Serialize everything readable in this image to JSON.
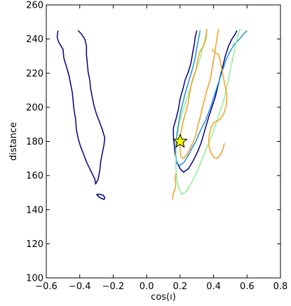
{
  "chart_data": {
    "type": "line",
    "title": "",
    "xlabel": "cos(ı)",
    "ylabel": "distance",
    "xlim": [
      -0.6,
      0.8
    ],
    "ylim": [
      100,
      260
    ],
    "xticks": [
      -0.6,
      -0.4,
      -0.2,
      0.0,
      0.2,
      0.4,
      0.6,
      0.8
    ],
    "yticks": [
      100,
      120,
      140,
      160,
      180,
      200,
      220,
      240,
      260
    ],
    "xtick_labels": [
      "−0.6",
      "−0.4",
      "−0.2",
      "0.0",
      "0.2",
      "0.4",
      "0.6",
      "0.8"
    ],
    "ytick_labels": [
      "100",
      "120",
      "140",
      "160",
      "180",
      "200",
      "220",
      "240",
      "260"
    ],
    "grid": false,
    "legend": "none",
    "series": [
      {
        "color": "#000080",
        "segments": [
          [
            [
              -0.53,
              245
            ],
            [
              -0.535,
              241
            ],
            [
              -0.525,
              238
            ],
            [
              -0.5,
              234
            ],
            [
              -0.495,
              229
            ],
            [
              -0.48,
              224
            ],
            [
              -0.465,
              219
            ],
            [
              -0.455,
              214
            ],
            [
              -0.445,
              209
            ],
            [
              -0.44,
              204
            ],
            [
              -0.435,
              199
            ],
            [
              -0.425,
              193
            ],
            [
              -0.42,
              187
            ],
            [
              -0.41,
              182
            ],
            [
              -0.395,
              177
            ],
            [
              -0.375,
              172
            ],
            [
              -0.36,
              168
            ],
            [
              -0.34,
              164
            ],
            [
              -0.325,
              161
            ],
            [
              -0.31,
              158
            ],
            [
              -0.305,
              155
            ],
            [
              -0.29,
              158
            ],
            [
              -0.28,
              163
            ],
            [
              -0.275,
              168
            ],
            [
              -0.265,
              173
            ],
            [
              -0.255,
              178
            ],
            [
              -0.25,
              182
            ],
            [
              -0.265,
              187
            ],
            [
              -0.28,
              191
            ],
            [
              -0.3,
              196
            ],
            [
              -0.315,
              201
            ],
            [
              -0.325,
              206
            ],
            [
              -0.335,
              211
            ],
            [
              -0.34,
              216
            ],
            [
              -0.35,
              221
            ],
            [
              -0.355,
              226
            ],
            [
              -0.36,
              231
            ],
            [
              -0.36,
              236
            ],
            [
              -0.37,
              240
            ],
            [
              -0.39,
              243
            ],
            [
              -0.41,
              245
            ]
          ],
          [
            [
              -0.3,
              149
            ],
            [
              -0.29,
              148
            ],
            [
              -0.28,
              147
            ],
            [
              -0.255,
              146
            ],
            [
              -0.25,
              147
            ],
            [
              -0.26,
              148.5
            ],
            [
              -0.28,
              149
            ],
            [
              -0.3,
              149
            ]
          ],
          [
            [
              0.3,
              245
            ],
            [
              0.29,
              241
            ],
            [
              0.285,
              237
            ],
            [
              0.275,
              232
            ],
            [
              0.265,
              226
            ],
            [
              0.25,
              221
            ],
            [
              0.23,
              216
            ],
            [
              0.215,
              210
            ],
            [
              0.2,
              205
            ],
            [
              0.19,
              199
            ],
            [
              0.175,
              193
            ],
            [
              0.16,
              188
            ],
            [
              0.16,
              183
            ],
            [
              0.165,
              178
            ],
            [
              0.17,
              173
            ],
            [
              0.18,
              168
            ],
            [
              0.2,
              164
            ],
            [
              0.22,
              162
            ],
            [
              0.25,
              164
            ],
            [
              0.28,
              169
            ],
            [
              0.305,
              174
            ],
            [
              0.325,
              179
            ],
            [
              0.34,
              184
            ],
            [
              0.355,
              189
            ],
            [
              0.37,
              194
            ],
            [
              0.39,
              200
            ],
            [
              0.41,
              206
            ],
            [
              0.425,
              212
            ],
            [
              0.44,
              218
            ],
            [
              0.455,
              224
            ],
            [
              0.47,
              230
            ],
            [
              0.49,
              236
            ],
            [
              0.51,
              240
            ],
            [
              0.53,
              243
            ],
            [
              0.54,
              245
            ]
          ]
        ]
      },
      {
        "color": "#1f8ee0",
        "segments": [
          [
            [
              0.32,
              245
            ],
            [
              0.31,
              240
            ],
            [
              0.3,
              235
            ],
            [
              0.29,
              229
            ],
            [
              0.275,
              223
            ],
            [
              0.26,
              218
            ],
            [
              0.245,
              213
            ],
            [
              0.23,
              208
            ],
            [
              0.215,
              202
            ],
            [
              0.2,
              196
            ],
            [
              0.19,
              190
            ],
            [
              0.18,
              184
            ],
            [
              0.175,
              178
            ],
            [
              0.175,
              172
            ],
            [
              0.18,
              167
            ],
            [
              0.2,
              166
            ],
            [
              0.225,
              168
            ],
            [
              0.25,
              172
            ],
            [
              0.27,
              176
            ],
            [
              0.295,
              180
            ],
            [
              0.315,
              185
            ],
            [
              0.335,
              189
            ],
            [
              0.355,
              193
            ],
            [
              0.375,
              198
            ],
            [
              0.395,
              204
            ],
            [
              0.415,
              210
            ],
            [
              0.435,
              216
            ],
            [
              0.455,
              222
            ],
            [
              0.475,
              228
            ],
            [
              0.5,
              233
            ],
            [
              0.525,
              237
            ],
            [
              0.555,
              240
            ],
            [
              0.58,
              243
            ],
            [
              0.6,
              245
            ]
          ]
        ]
      },
      {
        "color": "#90ee90",
        "segments": [
          [
            [
              0.36,
              245
            ],
            [
              0.35,
              240
            ],
            [
              0.335,
              235
            ],
            [
              0.32,
              229
            ],
            [
              0.3,
              223
            ],
            [
              0.28,
              217
            ],
            [
              0.26,
              211
            ],
            [
              0.24,
              205
            ],
            [
              0.22,
              199
            ],
            [
              0.2,
              193
            ],
            [
              0.19,
              187
            ],
            [
              0.18,
              181
            ],
            [
              0.175,
              175
            ],
            [
              0.175,
              170
            ],
            [
              0.175,
              164
            ],
            [
              0.18,
              158
            ],
            [
              0.19,
              153
            ],
            [
              0.21,
              149
            ],
            [
              0.24,
              151
            ],
            [
              0.27,
              156
            ],
            [
              0.3,
              162
            ],
            [
              0.325,
              168
            ],
            [
              0.35,
              174
            ],
            [
              0.375,
              180
            ],
            [
              0.4,
              186
            ],
            [
              0.42,
              192
            ],
            [
              0.44,
              198
            ],
            [
              0.46,
              204
            ],
            [
              0.475,
              210
            ],
            [
              0.49,
              217
            ],
            [
              0.505,
              224
            ],
            [
              0.52,
              231
            ],
            [
              0.535,
              238
            ],
            [
              0.55,
              244
            ],
            [
              0.56,
              246
            ]
          ]
        ]
      },
      {
        "color": "#f4a020",
        "segments": [
          [
            [
              0.36,
              246
            ],
            [
              0.355,
              240
            ],
            [
              0.34,
              236
            ],
            [
              0.32,
              233
            ],
            [
              0.305,
              228
            ],
            [
              0.295,
              222
            ],
            [
              0.28,
              218
            ],
            [
              0.265,
              213
            ],
            [
              0.255,
              207
            ],
            [
              0.245,
              201
            ],
            [
              0.23,
              196
            ],
            [
              0.215,
              190
            ],
            [
              0.205,
              185
            ],
            [
              0.2,
              180
            ],
            [
              0.2,
              175
            ],
            [
              0.205,
              171
            ],
            [
              0.22,
              170
            ],
            [
              0.24,
              172
            ],
            [
              0.26,
              176
            ],
            [
              0.28,
              180
            ],
            [
              0.295,
              184
            ],
            [
              0.305,
              189
            ],
            [
              0.32,
              194
            ],
            [
              0.33,
              199
            ],
            [
              0.345,
              204
            ],
            [
              0.36,
              210
            ],
            [
              0.38,
              216
            ],
            [
              0.39,
              222
            ],
            [
              0.4,
              228
            ],
            [
              0.41,
              234
            ],
            [
              0.42,
              240
            ],
            [
              0.43,
              246
            ]
          ],
          [
            [
              0.39,
              234
            ],
            [
              0.41,
              232
            ],
            [
              0.43,
              231
            ],
            [
              0.44,
              227
            ],
            [
              0.45,
              222
            ],
            [
              0.46,
              217
            ],
            [
              0.47,
              212
            ],
            [
              0.48,
              207
            ],
            [
              0.475,
              201
            ],
            [
              0.46,
              196
            ],
            [
              0.44,
              193
            ],
            [
              0.42,
              192
            ],
            [
              0.4,
              191
            ],
            [
              0.385,
              188
            ],
            [
              0.375,
              184
            ],
            [
              0.37,
              180
            ],
            [
              0.375,
              176
            ],
            [
              0.385,
              173
            ],
            [
              0.4,
              171
            ],
            [
              0.42,
              170
            ],
            [
              0.44,
              172
            ],
            [
              0.455,
              175
            ],
            [
              0.465,
              179
            ]
          ],
          [
            [
              0.155,
              146
            ],
            [
              0.16,
              150
            ],
            [
              0.17,
              152
            ],
            [
              0.175,
              155
            ],
            [
              0.17,
              158
            ],
            [
              0.175,
              161
            ]
          ]
        ]
      }
    ],
    "marker": {
      "x": 0.2,
      "y": 180,
      "shape": "star",
      "color": "#ffff00"
    }
  }
}
